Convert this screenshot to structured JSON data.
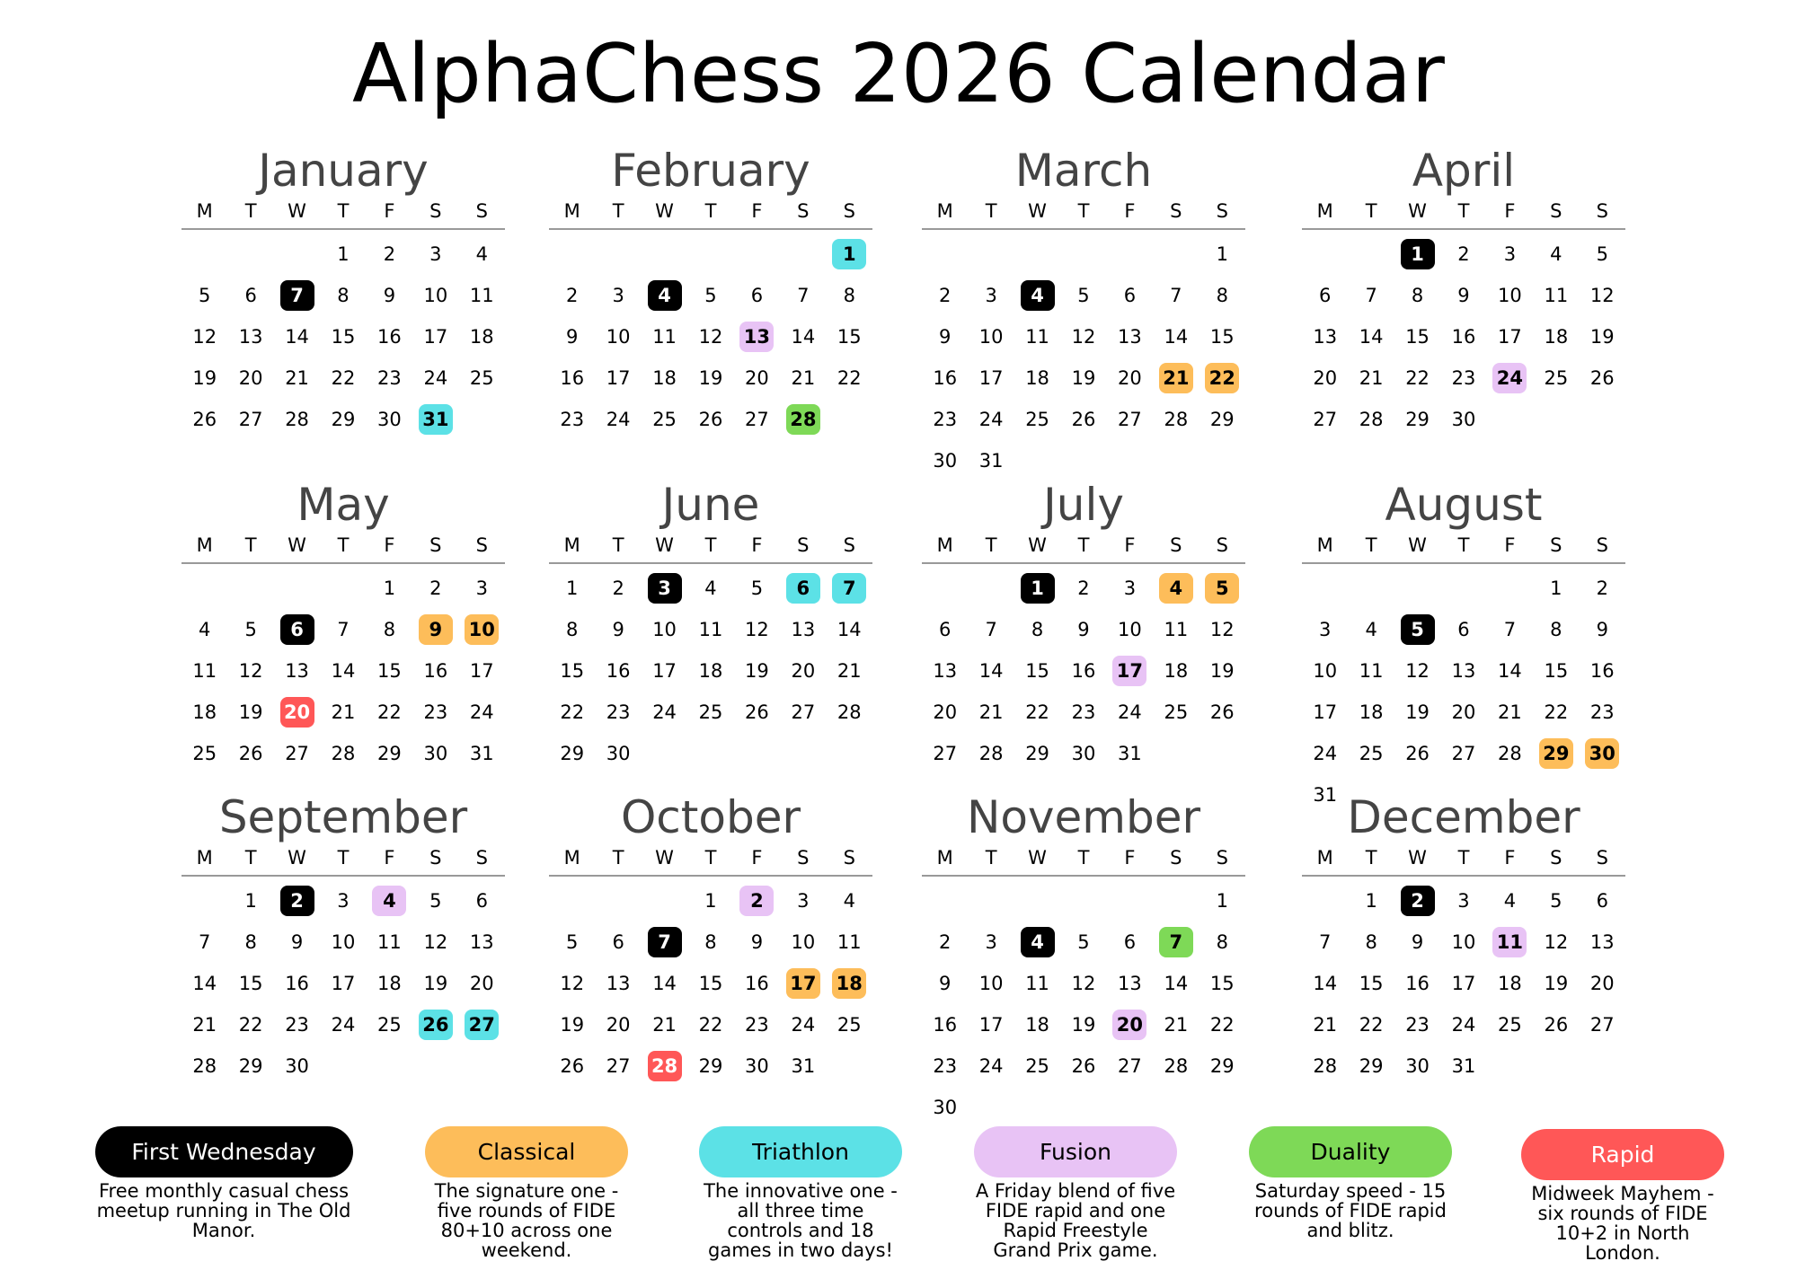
{
  "title": "AlphaChess 2026 Calendar",
  "year": 2026,
  "weekdays": [
    "M",
    "T",
    "W",
    "T",
    "F",
    "S",
    "S"
  ],
  "colors": {
    "first_wednesday": "#000000",
    "classical": "#FDBD5A",
    "triathlon": "#5CE1E6",
    "fusion": "#E8C3F5",
    "duality": "#7ED957",
    "rapid": "#FF5757"
  },
  "text_colors": {
    "first_wednesday": "#ffffff",
    "classical": "#000000",
    "triathlon": "#000000",
    "fusion": "#000000",
    "duality": "#000000",
    "rapid": "#ffffff"
  },
  "months": [
    {
      "name": "January",
      "events": {
        "7": "first_wednesday",
        "31": "triathlon"
      }
    },
    {
      "name": "February",
      "events": {
        "1": "triathlon",
        "4": "first_wednesday",
        "13": "fusion",
        "28": "duality"
      }
    },
    {
      "name": "March",
      "events": {
        "4": "first_wednesday",
        "21": "classical",
        "22": "classical"
      }
    },
    {
      "name": "April",
      "events": {
        "1": "first_wednesday",
        "24": "fusion"
      }
    },
    {
      "name": "May",
      "events": {
        "6": "first_wednesday",
        "9": "classical",
        "10": "classical",
        "20": "rapid"
      }
    },
    {
      "name": "June",
      "events": {
        "3": "first_wednesday",
        "6": "triathlon",
        "7": "triathlon"
      }
    },
    {
      "name": "July",
      "events": {
        "1": "first_wednesday",
        "4": "classical",
        "5": "classical",
        "17": "fusion"
      }
    },
    {
      "name": "August",
      "events": {
        "5": "first_wednesday",
        "29": "classical",
        "30": "classical"
      }
    },
    {
      "name": "September",
      "events": {
        "2": "first_wednesday",
        "4": "fusion",
        "26": "triathlon",
        "27": "triathlon"
      }
    },
    {
      "name": "October",
      "events": {
        "2": "fusion",
        "7": "first_wednesday",
        "17": "classical",
        "18": "classical",
        "28": "rapid"
      }
    },
    {
      "name": "November",
      "events": {
        "4": "first_wednesday",
        "7": "duality",
        "20": "fusion"
      }
    },
    {
      "name": "December",
      "events": {
        "2": "first_wednesday",
        "11": "fusion"
      }
    }
  ],
  "legend": [
    {
      "key": "first_wednesday",
      "label": "First Wednesday",
      "description": "Free monthly casual chess meetup running in The Old Manor."
    },
    {
      "key": "classical",
      "label": "Classical",
      "description": "The signature one - five rounds of FIDE 80+10 across one weekend."
    },
    {
      "key": "triathlon",
      "label": "Triathlon",
      "description": "The innovative one - all three time controls and 18 games in two days!"
    },
    {
      "key": "fusion",
      "label": "Fusion",
      "description": "A Friday blend of five FIDE rapid and one Rapid Freestyle Grand Prix game."
    },
    {
      "key": "duality",
      "label": "Duality",
      "description": "Saturday speed - 15 rounds of FIDE rapid and blitz."
    },
    {
      "key": "rapid",
      "label": "Rapid",
      "description": "Midweek Mayhem - six rounds of FIDE 10+2 in North London."
    }
  ]
}
